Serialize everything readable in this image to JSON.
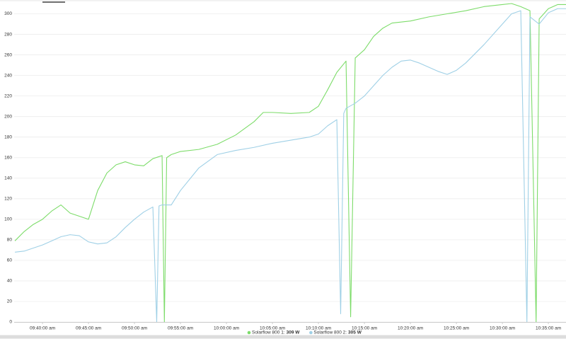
{
  "chart_data": {
    "type": "line",
    "xlim": [
      "09:36:55 am",
      "10:36:55 am"
    ],
    "xticks": [
      "09:40:00 am",
      "09:45:00 am",
      "09:50:00 am",
      "09:55:00 am",
      "10:00:00 am",
      "10:05:00 am",
      "10:10:00 am",
      "10:15:00 am",
      "10:20:00 am",
      "10:25:00 am",
      "10:30:00 am",
      "10:35:00 am"
    ],
    "ylim": [
      0,
      310
    ],
    "yticks": [
      0,
      20,
      40,
      60,
      80,
      100,
      120,
      140,
      160,
      180,
      200,
      220,
      240,
      260,
      280,
      300
    ],
    "grid": true,
    "series": [
      {
        "name": "Solarflow 800 1:",
        "current_label": "309 W",
        "color": "#7ddc6a",
        "x": [
          "09:37:00 am",
          "09:38:00 am",
          "09:39:00 am",
          "09:40:00 am",
          "09:41:00 am",
          "09:42:00 am",
          "09:43:00 am",
          "09:44:00 am",
          "09:45:00 am",
          "09:46:00 am",
          "09:47:00 am",
          "09:48:00 am",
          "09:49:00 am",
          "09:50:00 am",
          "09:51:00 am",
          "09:52:00 am",
          "09:53:00 am",
          "09:53:15 am",
          "09:53:30 am",
          "09:54:00 am",
          "09:55:00 am",
          "09:57:00 am",
          "09:59:00 am",
          "10:01:00 am",
          "10:03:00 am",
          "10:04:00 am",
          "10:05:00 am",
          "10:07:00 am",
          "10:09:00 am",
          "10:10:00 am",
          "10:11:00 am",
          "10:12:00 am",
          "10:13:00 am",
          "10:13:30 am",
          "10:14:00 am",
          "10:15:00 am",
          "10:16:00 am",
          "10:17:00 am",
          "10:18:00 am",
          "10:20:00 am",
          "10:22:00 am",
          "10:24:00 am",
          "10:26:00 am",
          "10:28:00 am",
          "10:30:00 am",
          "10:31:00 am",
          "10:32:00 am",
          "10:33:00 am",
          "10:33:40 am",
          "10:34:00 am",
          "10:35:00 am",
          "10:36:00 am",
          "10:36:55 am"
        ],
        "values": [
          79,
          88,
          95,
          100,
          108,
          114,
          106,
          103,
          100,
          128,
          145,
          153,
          156,
          153,
          152,
          159,
          162,
          0,
          160,
          163,
          166,
          168,
          173,
          182,
          195,
          204,
          204,
          203,
          204,
          210,
          226,
          243,
          254,
          5,
          257,
          265,
          278,
          286,
          291,
          293,
          297,
          300,
          303,
          307,
          309,
          310,
          307,
          303,
          0,
          295,
          305,
          309,
          309
        ]
      },
      {
        "name": "Solarflow 800 2:",
        "current_label": "305 W",
        "color": "#9fd0e6",
        "x": [
          "09:37:00 am",
          "09:38:00 am",
          "09:39:00 am",
          "09:40:00 am",
          "09:41:00 am",
          "09:42:00 am",
          "09:43:00 am",
          "09:44:00 am",
          "09:45:00 am",
          "09:46:00 am",
          "09:47:00 am",
          "09:48:00 am",
          "09:49:00 am",
          "09:50:00 am",
          "09:51:00 am",
          "09:52:00 am",
          "09:52:25 am",
          "09:52:40 am",
          "09:53:00 am",
          "09:54:00 am",
          "09:55:00 am",
          "09:57:00 am",
          "09:59:00 am",
          "10:01:00 am",
          "10:03:00 am",
          "10:05:00 am",
          "10:07:00 am",
          "10:09:00 am",
          "10:10:00 am",
          "10:11:00 am",
          "10:12:00 am",
          "10:12:25 am",
          "10:12:45 am",
          "10:13:00 am",
          "10:14:00 am",
          "10:15:00 am",
          "10:16:00 am",
          "10:17:00 am",
          "10:18:00 am",
          "10:19:00 am",
          "10:20:00 am",
          "10:21:00 am",
          "10:22:00 am",
          "10:23:00 am",
          "10:24:00 am",
          "10:25:00 am",
          "10:26:00 am",
          "10:28:00 am",
          "10:30:00 am",
          "10:31:00 am",
          "10:32:00 am",
          "10:32:40 am",
          "10:33:00 am",
          "10:34:00 am",
          "10:35:00 am",
          "10:36:00 am",
          "10:36:55 am"
        ],
        "values": [
          68,
          69,
          72,
          75,
          79,
          83,
          85,
          84,
          78,
          76,
          77,
          83,
          92,
          100,
          107,
          112,
          0,
          113,
          114,
          114,
          128,
          150,
          163,
          167,
          170,
          174,
          177,
          180,
          183,
          191,
          197,
          8,
          203,
          208,
          213,
          220,
          230,
          240,
          248,
          254,
          255,
          252,
          248,
          244,
          241,
          245,
          252,
          270,
          290,
          300,
          303,
          0,
          297,
          290,
          301,
          305,
          305
        ]
      }
    ]
  }
}
